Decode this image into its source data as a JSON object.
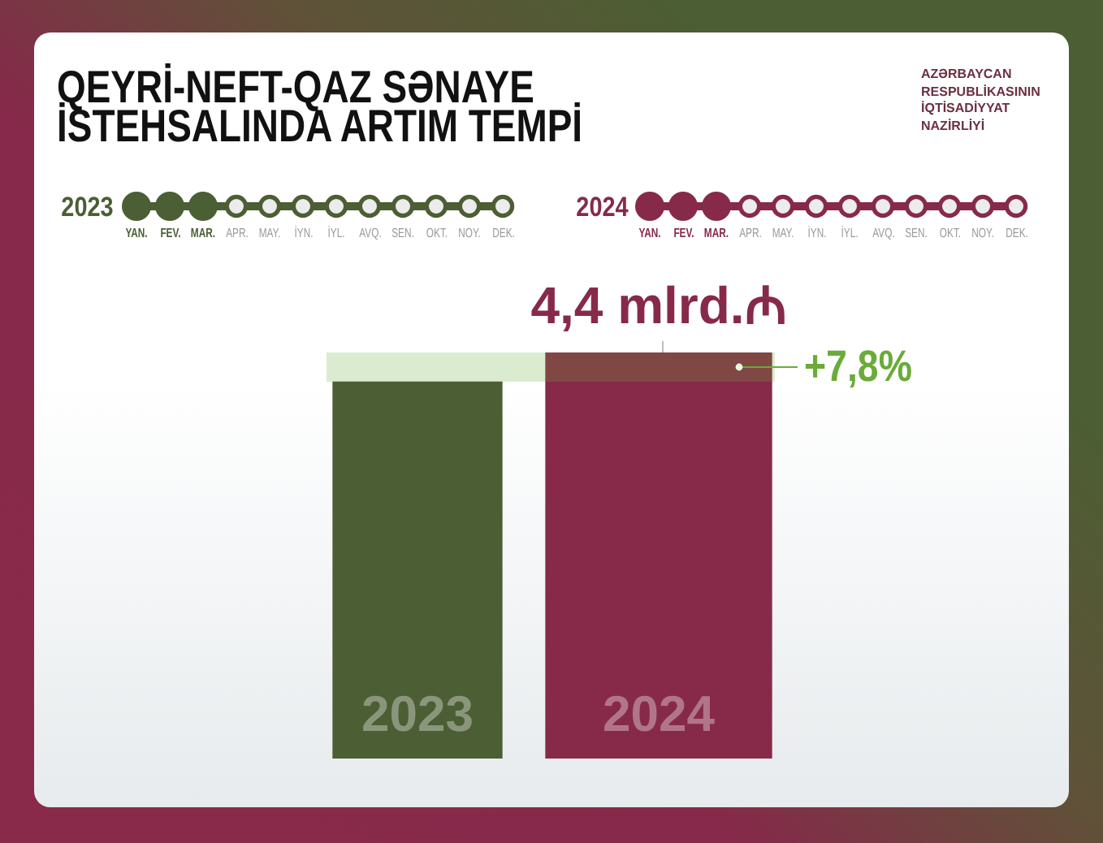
{
  "chart_data": {
    "type": "bar",
    "title": "QEYRİ-NEFT-QAZ SƏNAYE İSTEHSALINDA ARTIM TEMPİ",
    "categories": [
      "2023",
      "2024"
    ],
    "values": [
      4.08,
      4.4
    ],
    "colors": [
      "#4b5e34",
      "#872a49"
    ],
    "value_labels": [
      null,
      "4,4 mlrd.₼"
    ],
    "bands": [
      {
        "axis": "y",
        "from": 4.08,
        "to": 4.4,
        "label": "+7,8%",
        "color": "#6aab3a"
      }
    ],
    "tick_labels": "x",
    "annotations": [
      "YAN.",
      "FEV.",
      "MAR.",
      "APR.",
      "MAY.",
      "İYN.",
      "İYL.",
      "AVQ.",
      "SEN.",
      "OKT.",
      "NOY.",
      "DEK.",
      "AZƏRBAYCAN RESPUBLİKASININ İQTİSADİYYAT NAZİRLİYİ"
    ]
  }
}
